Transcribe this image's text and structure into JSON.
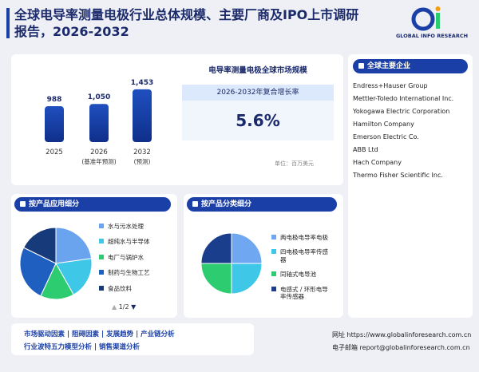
{
  "header": {
    "title": "全球电导率测量电极行业总体规模、主要厂商及IPO上市调研报告，2026-2032",
    "logo": "GLOBAL INFO RESEARCH"
  },
  "chart_data": [
    {
      "type": "bar",
      "categories": [
        "2025",
        "2026",
        "2032"
      ],
      "category_notes": [
        null,
        "(基准年预测)",
        "(预测)"
      ],
      "values": [
        988,
        1050,
        1453
      ],
      "value_labels": [
        "988",
        "1,050",
        "1,453"
      ],
      "color": "#1f4fbf"
    },
    {
      "type": "pie",
      "title": "按产品应用细分",
      "categories": [
        "水与污水处理",
        "超纯水与半导体",
        "电厂与锅炉水",
        "制药与生物工艺",
        "食品饮料"
      ],
      "values": [
        18,
        15,
        12,
        20,
        14
      ],
      "colors": [
        "#6aa3ee",
        "#3fc7e8",
        "#2ecc71",
        "#1f5fbf",
        "#163a7a"
      ],
      "page": "1/2"
    },
    {
      "type": "pie",
      "title": "按产品分类细分",
      "categories": [
        "两电极电导率电极",
        "四电极电导率传感器",
        "同轴式电导池",
        "电感式 / 环形电导率传感器"
      ],
      "values": [
        25,
        25,
        25,
        25
      ],
      "colors": [
        "#6fa8f0",
        "#3fc7e8",
        "#2ecc71",
        "#1a3d8c"
      ]
    }
  ],
  "market": {
    "title": "电导率测量电极全球市场规模",
    "cagr_label": "2026-2032年复合增长率",
    "cagr": "5.6%",
    "unit": "单位：百万美元"
  },
  "companies": {
    "title": "全球主要企业",
    "list": [
      "Endress+Hauser Group",
      "Mettler-Toledo International Inc.",
      "Yokogawa Electric Corporation",
      "Hamilton Company",
      "Emerson Electric Co.",
      "ABB Ltd",
      "Hach Company",
      "Thermo Fisher Scientific Inc."
    ]
  },
  "footer": {
    "links": [
      "市场驱动因素",
      "阻碍因素",
      "发展趋势",
      "产业链分析",
      "行业波特五力模型分析",
      "销售渠道分析"
    ],
    "website_label": "网址",
    "website": "https://www.globalinforesearch.com.cn",
    "email_label": "电子邮箱",
    "email": "report@globalinforesearch.com.cn"
  }
}
